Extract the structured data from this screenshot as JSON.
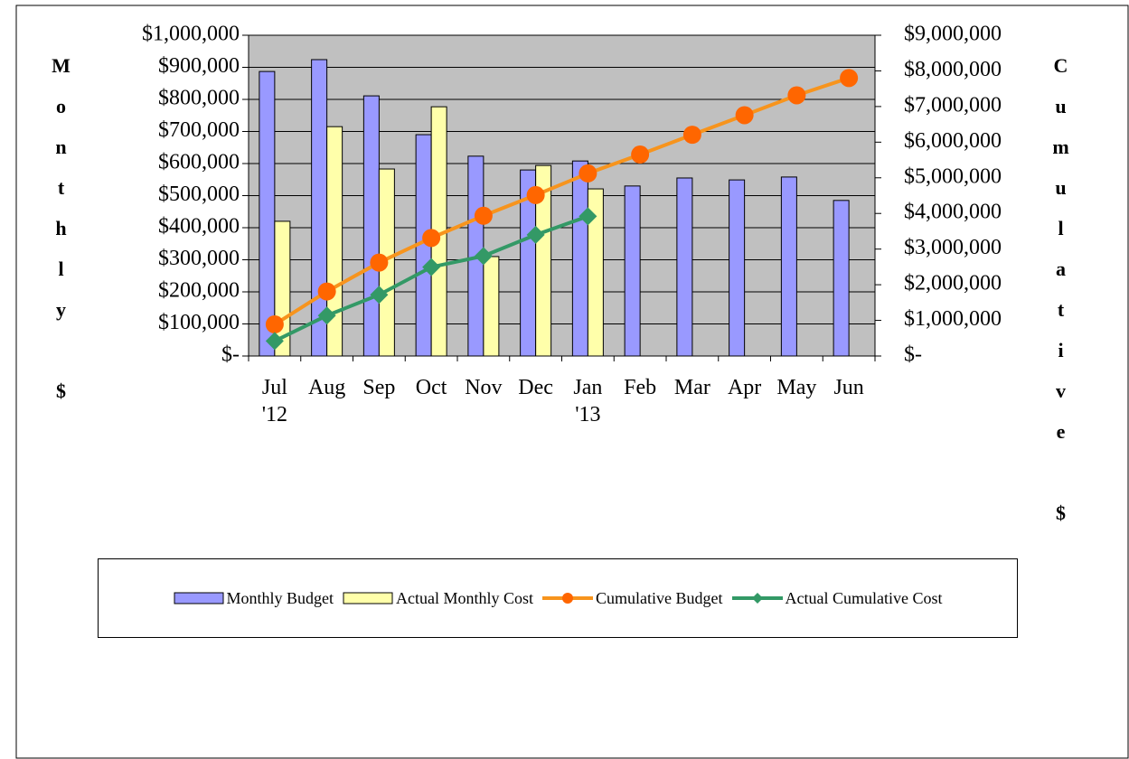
{
  "chart_data": {
    "type": "bar_line",
    "categories": [
      "Jul '12",
      "Aug",
      "Sep",
      "Oct",
      "Nov",
      "Dec",
      "Jan '13",
      "Feb",
      "Mar",
      "Apr",
      "May",
      "Jun"
    ],
    "series": [
      {
        "name": "Monthly Budget",
        "type": "bar",
        "color": "#9999ff",
        "values": [
          887000,
          924000,
          811000,
          690000,
          623000,
          580000,
          608000,
          530000,
          555000,
          549000,
          558000,
          485000
        ]
      },
      {
        "name": "Actual Monthly Cost",
        "type": "bar",
        "color": "#ffffaa",
        "values": [
          420000,
          715000,
          583000,
          777000,
          310000,
          594000,
          521000,
          null,
          null,
          null,
          null,
          null
        ]
      },
      {
        "name": "Cumulative Budget",
        "type": "line",
        "axis": "y2",
        "color": "#f7941d",
        "marker": "circle",
        "marker_color": "#ff6600",
        "values": [
          887000,
          1811000,
          2622000,
          3312000,
          3935000,
          4515000,
          5123000,
          5653000,
          6208000,
          6757000,
          7315000,
          7800000
        ]
      },
      {
        "name": "Actual Cumulative Cost",
        "type": "line",
        "axis": "y2",
        "color": "#339966",
        "marker": "diamond",
        "marker_color": "#339966",
        "values": [
          420000,
          1135000,
          1718000,
          2495000,
          2805000,
          3399000,
          3920000,
          null,
          null,
          null,
          null,
          null
        ]
      }
    ],
    "ylabel": "Monthly $",
    "y2label": "Cumulative $",
    "ylim": [
      0,
      1000000
    ],
    "yticks": [
      {
        "value": 0,
        "label": "$-"
      },
      {
        "value": 100000,
        "label": "$100,000"
      },
      {
        "value": 200000,
        "label": "$200,000"
      },
      {
        "value": 300000,
        "label": "$300,000"
      },
      {
        "value": 400000,
        "label": "$400,000"
      },
      {
        "value": 500000,
        "label": "$500,000"
      },
      {
        "value": 600000,
        "label": "$600,000"
      },
      {
        "value": 700000,
        "label": "$700,000"
      },
      {
        "value": 800000,
        "label": "$800,000"
      },
      {
        "value": 900000,
        "label": "$900,000"
      },
      {
        "value": 1000000,
        "label": "$1,000,000"
      }
    ],
    "y2lim": [
      0,
      9000000
    ],
    "y2ticks": [
      {
        "value": 0,
        "label": "$-"
      },
      {
        "value": 1000000,
        "label": "$1,000,000"
      },
      {
        "value": 2000000,
        "label": "$2,000,000"
      },
      {
        "value": 3000000,
        "label": "$3,000,000"
      },
      {
        "value": 4000000,
        "label": "$4,000,000"
      },
      {
        "value": 5000000,
        "label": "$5,000,000"
      },
      {
        "value": 6000000,
        "label": "$6,000,000"
      },
      {
        "value": 7000000,
        "label": "$7,000,000"
      },
      {
        "value": 8000000,
        "label": "$8,000,000"
      },
      {
        "value": 9000000,
        "label": "$9,000,000"
      }
    ],
    "grid": true,
    "plot_background": "#c0c0c0",
    "legend": "bottom"
  }
}
